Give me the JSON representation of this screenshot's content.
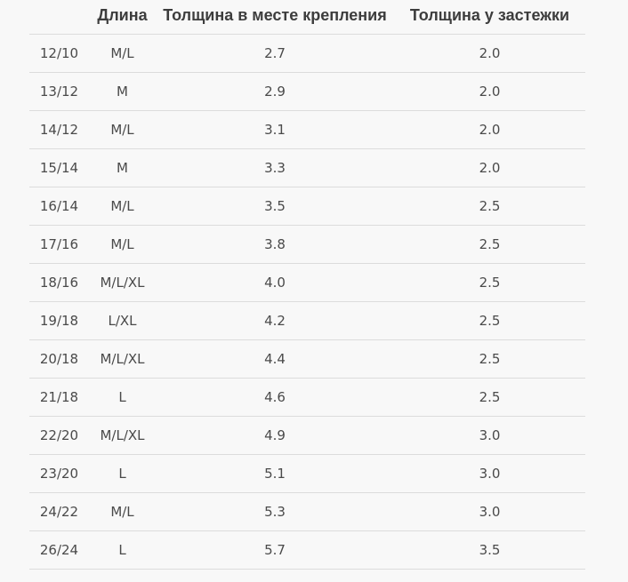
{
  "chart_data": {
    "type": "table",
    "title": "",
    "columns": [
      "",
      "Длина",
      "Толщина в месте крепления",
      "Толщина у застежки"
    ],
    "rows": [
      [
        "12/10",
        "M/L",
        "2.7",
        "2.0"
      ],
      [
        "13/12",
        "M",
        "2.9",
        "2.0"
      ],
      [
        "14/12",
        "M/L",
        "3.1",
        "2.0"
      ],
      [
        "15/14",
        "M",
        "3.3",
        "2.0"
      ],
      [
        "16/14",
        "M/L",
        "3.5",
        "2.5"
      ],
      [
        "17/16",
        "M/L",
        "3.8",
        "2.5"
      ],
      [
        "18/16",
        "M/L/XL",
        "4.0",
        "2.5"
      ],
      [
        "19/18",
        "L/XL",
        "4.2",
        "2.5"
      ],
      [
        "20/18",
        "M/L/XL",
        "4.4",
        "2.5"
      ],
      [
        "21/18",
        "L",
        "4.6",
        "2.5"
      ],
      [
        "22/20",
        "M/L/XL",
        "4.9",
        "3.0"
      ],
      [
        "23/20",
        "L",
        "5.1",
        "3.0"
      ],
      [
        "24/22",
        "M/L",
        "5.3",
        "3.0"
      ],
      [
        "26/24",
        "L",
        "5.7",
        "3.5"
      ]
    ],
    "layout": {
      "grid": "horizontal-row-separators-only",
      "header_style": "bold",
      "value_alignment": "center"
    }
  },
  "colors": {
    "page_background": "#f8f8f8",
    "text": "#4a4a4a",
    "header_text": "#3d3d3d",
    "row_border": "#dcdcdc"
  }
}
